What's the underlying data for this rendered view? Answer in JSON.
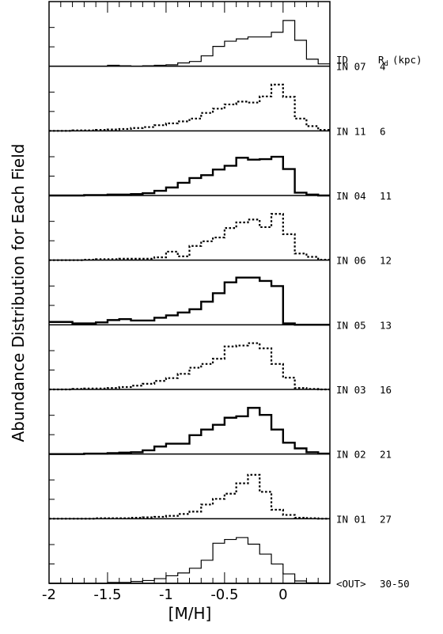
{
  "chart_data": {
    "type": "histogram-stack",
    "xlabel": "[M/H]",
    "ylabel": "Abundance Distribution for Each Field",
    "xlim": [
      -2.0,
      0.4
    ],
    "x_ticks": [
      "-2",
      "-1.5",
      "-1",
      "-0.5",
      "0"
    ],
    "x_tick_values": [
      -2,
      -1.5,
      -1,
      -0.5,
      0
    ],
    "bin_width": 0.1,
    "bin_left_edges": [
      -2.0,
      -1.9,
      -1.8,
      -1.7,
      -1.6,
      -1.5,
      -1.4,
      -1.3,
      -1.2,
      -1.1,
      -1.0,
      -0.9,
      -0.8,
      -0.7,
      -0.6,
      -0.5,
      -0.4,
      -0.3,
      -0.2,
      -0.1,
      0.0,
      0.1,
      0.2,
      0.3
    ],
    "column_headers": {
      "id": "ID",
      "radius": "R",
      "radius_subscript": "d",
      "radius_unit": "(kpc)"
    },
    "fields": [
      {
        "id": "IN 07",
        "rd": "4",
        "style": "solid-thin",
        "values": [
          0,
          0,
          0,
          0,
          0,
          0.02,
          0.01,
          0,
          0.01,
          0.02,
          0.03,
          0.07,
          0.1,
          0.22,
          0.42,
          0.53,
          0.58,
          0.62,
          0.62,
          0.72,
          0.97,
          0.55,
          0.15,
          0.05
        ]
      },
      {
        "id": "IN 11",
        "rd": "6",
        "style": "dotted",
        "values": [
          0,
          0,
          0.01,
          0.01,
          0.02,
          0.03,
          0.04,
          0.06,
          0.08,
          0.12,
          0.16,
          0.2,
          0.26,
          0.38,
          0.47,
          0.56,
          0.62,
          0.6,
          0.73,
          0.98,
          0.72,
          0.26,
          0.1,
          0.02
        ]
      },
      {
        "id": "IN 04",
        "rd": "11",
        "style": "solid-thick",
        "values": [
          0,
          0,
          0,
          0.01,
          0.01,
          0.02,
          0.02,
          0.03,
          0.05,
          0.1,
          0.17,
          0.27,
          0.37,
          0.43,
          0.55,
          0.63,
          0.8,
          0.76,
          0.77,
          0.82,
          0.56,
          0.06,
          0.02,
          0
        ]
      },
      {
        "id": "IN 06",
        "rd": "12",
        "style": "dotted",
        "values": [
          0,
          0,
          0,
          0.01,
          0.02,
          0.02,
          0.03,
          0.03,
          0.03,
          0.06,
          0.18,
          0.08,
          0.3,
          0.4,
          0.48,
          0.68,
          0.8,
          0.86,
          0.7,
          0.98,
          0.55,
          0.14,
          0.07,
          0.01
        ]
      },
      {
        "id": "IN 05",
        "rd": "13",
        "style": "solid-thick",
        "values": [
          0.06,
          0.06,
          0.03,
          0.03,
          0.05,
          0.1,
          0.12,
          0.09,
          0.09,
          0.15,
          0.2,
          0.26,
          0.33,
          0.49,
          0.67,
          0.9,
          1.0,
          1.0,
          0.93,
          0.82,
          0.03,
          0,
          0,
          0
        ]
      },
      {
        "id": "IN 03",
        "rd": "16",
        "style": "dotted",
        "values": [
          0,
          0,
          0.01,
          0.02,
          0.02,
          0.03,
          0.05,
          0.08,
          0.12,
          0.18,
          0.24,
          0.33,
          0.46,
          0.54,
          0.65,
          0.91,
          0.93,
          0.98,
          0.87,
          0.54,
          0.25,
          0.03,
          0.01,
          0
        ]
      },
      {
        "id": "IN 02",
        "rd": "21",
        "style": "solid-thick",
        "values": [
          0,
          0,
          0,
          0.01,
          0.01,
          0.02,
          0.03,
          0.04,
          0.08,
          0.16,
          0.22,
          0.22,
          0.4,
          0.52,
          0.62,
          0.77,
          0.8,
          0.98,
          0.83,
          0.52,
          0.24,
          0.12,
          0.04,
          0.01
        ]
      },
      {
        "id": "IN 01",
        "rd": "27",
        "style": "dotted",
        "values": [
          0,
          0,
          0,
          0,
          0.01,
          0.01,
          0.01,
          0.02,
          0.03,
          0.04,
          0.06,
          0.1,
          0.15,
          0.3,
          0.42,
          0.53,
          0.75,
          0.93,
          0.57,
          0.19,
          0.08,
          0.02,
          0.01,
          0
        ]
      },
      {
        "id": "<OUT>",
        "rd": "30-50",
        "style": "solid-thin",
        "values": [
          0,
          0,
          0,
          0,
          0,
          0.02,
          0.02,
          0.04,
          0.06,
          0.1,
          0.16,
          0.22,
          0.32,
          0.49,
          0.85,
          0.93,
          0.97,
          0.83,
          0.62,
          0.41,
          0.2,
          0.05,
          0.01,
          0
        ]
      }
    ]
  }
}
